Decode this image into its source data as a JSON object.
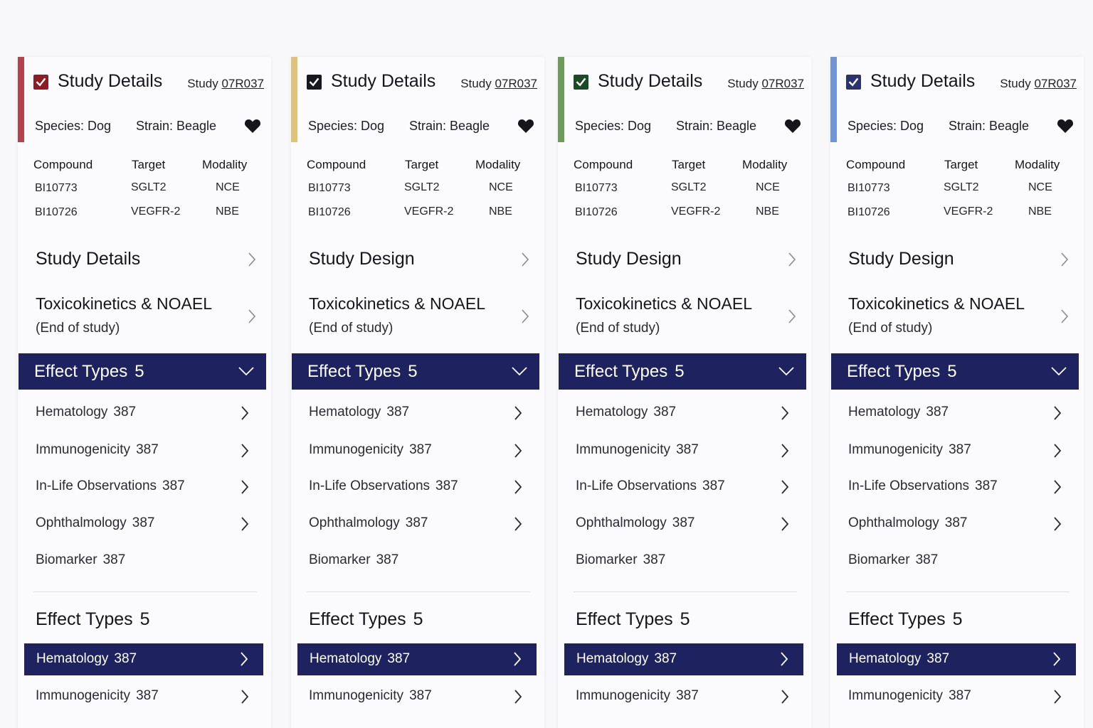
{
  "cards": [
    {
      "accent": "#b5434d",
      "checkbox_color": "#8e1c24",
      "header_title": "Study Details",
      "study_prefix": "Study",
      "study_code": "07R037",
      "species": "Species: Dog",
      "strain": "Strain: Beagle",
      "table": {
        "headers": [
          "Compound",
          "Target",
          "Modality"
        ],
        "rows": [
          [
            "BI10773",
            "SGLT2",
            "NCE"
          ],
          [
            "BI10726",
            "VEGFR-2",
            "NBE"
          ]
        ]
      },
      "nav1": "Study Details",
      "nav2_title": "Toxicokinetics & NOAEL",
      "nav2_sub": "(End of study)",
      "effect_header": {
        "label": "Effect Types",
        "count": "5"
      },
      "effects": [
        {
          "label": "Hematology",
          "count": "387"
        },
        {
          "label": "Immunogenicity",
          "count": "387"
        },
        {
          "label": "In-Life Observations",
          "count": "387"
        },
        {
          "label": "Ophthalmology",
          "count": "387"
        },
        {
          "label": "Biomarker",
          "count": "387"
        }
      ],
      "effect2": {
        "label": "Effect Types",
        "count": "5"
      },
      "selected": {
        "label": "Hematology",
        "count": "387"
      },
      "last": {
        "label": "Immunogenicity",
        "count": "387"
      }
    },
    {
      "accent": "#e0c278",
      "checkbox_color": "#17171f",
      "header_title": "Study Details",
      "study_prefix": "Study",
      "study_code": "07R037",
      "species": "Species: Dog",
      "strain": "Strain: Beagle",
      "table": {
        "headers": [
          "Compound",
          "Target",
          "Modality"
        ],
        "rows": [
          [
            "BI10773",
            "SGLT2",
            "NCE"
          ],
          [
            "BI10726",
            "VEGFR-2",
            "NBE"
          ]
        ]
      },
      "nav1": "Study Design",
      "nav2_title": "Toxicokinetics & NOAEL",
      "nav2_sub": "(End of study)",
      "effect_header": {
        "label": "Effect Types",
        "count": "5"
      },
      "effects": [
        {
          "label": "Hematology",
          "count": "387"
        },
        {
          "label": "Immunogenicity",
          "count": "387"
        },
        {
          "label": "In-Life Observations",
          "count": "387"
        },
        {
          "label": "Ophthalmology",
          "count": "387"
        },
        {
          "label": "Biomarker",
          "count": "387"
        }
      ],
      "effect2": {
        "label": "Effect Types",
        "count": "5"
      },
      "selected": {
        "label": "Hematology",
        "count": "387"
      },
      "last": {
        "label": "Immunogenicity",
        "count": "387"
      }
    },
    {
      "accent": "#6e9a5a",
      "checkbox_color": "#1d4a26",
      "header_title": "Study Details",
      "study_prefix": "Study",
      "study_code": "07R037",
      "species": "Species: Dog",
      "strain": "Strain: Beagle",
      "table": {
        "headers": [
          "Compound",
          "Target",
          "Modality"
        ],
        "rows": [
          [
            "BI10773",
            "SGLT2",
            "NCE"
          ],
          [
            "BI10726",
            "VEGFR-2",
            "NBE"
          ]
        ]
      },
      "nav1": "Study Design",
      "nav2_title": "Toxicokinetics & NOAEL",
      "nav2_sub": "(End of study)",
      "effect_header": {
        "label": "Effect Types",
        "count": "5"
      },
      "effects": [
        {
          "label": "Hematology",
          "count": "387"
        },
        {
          "label": "Immunogenicity",
          "count": "387"
        },
        {
          "label": "In-Life Observations",
          "count": "387"
        },
        {
          "label": "Ophthalmology",
          "count": "387"
        },
        {
          "label": "Biomarker",
          "count": "387"
        }
      ],
      "effect2": {
        "label": "Effect Types",
        "count": "5"
      },
      "selected": {
        "label": "Hematology",
        "count": "387"
      },
      "last": {
        "label": "Immunogenicity",
        "count": "387"
      }
    },
    {
      "accent": "#7194d6",
      "checkbox_color": "#2a3370",
      "header_title": "Study Details",
      "study_prefix": "Study",
      "study_code": "07R037",
      "species": "Species: Dog",
      "strain": "Strain: Beagle",
      "table": {
        "headers": [
          "Compound",
          "Target",
          "Modality"
        ],
        "rows": [
          [
            "BI10773",
            "SGLT2",
            "NCE"
          ],
          [
            "BI10726",
            "VEGFR-2",
            "NBE"
          ]
        ]
      },
      "nav1": "Study Design",
      "nav2_title": "Toxicokinetics & NOAEL",
      "nav2_sub": "(End of study)",
      "effect_header": {
        "label": "Effect Types",
        "count": "5"
      },
      "effects": [
        {
          "label": "Hematology",
          "count": "387"
        },
        {
          "label": "Immunogenicity",
          "count": "387"
        },
        {
          "label": "In-Life Observations",
          "count": "387"
        },
        {
          "label": "Ophthalmology",
          "count": "387"
        },
        {
          "label": "Biomarker",
          "count": "387"
        }
      ],
      "effect2": {
        "label": "Effect Types",
        "count": "5"
      },
      "selected": {
        "label": "Hematology",
        "count": "387"
      },
      "last": {
        "label": "Immunogenicity",
        "count": "387"
      }
    }
  ]
}
